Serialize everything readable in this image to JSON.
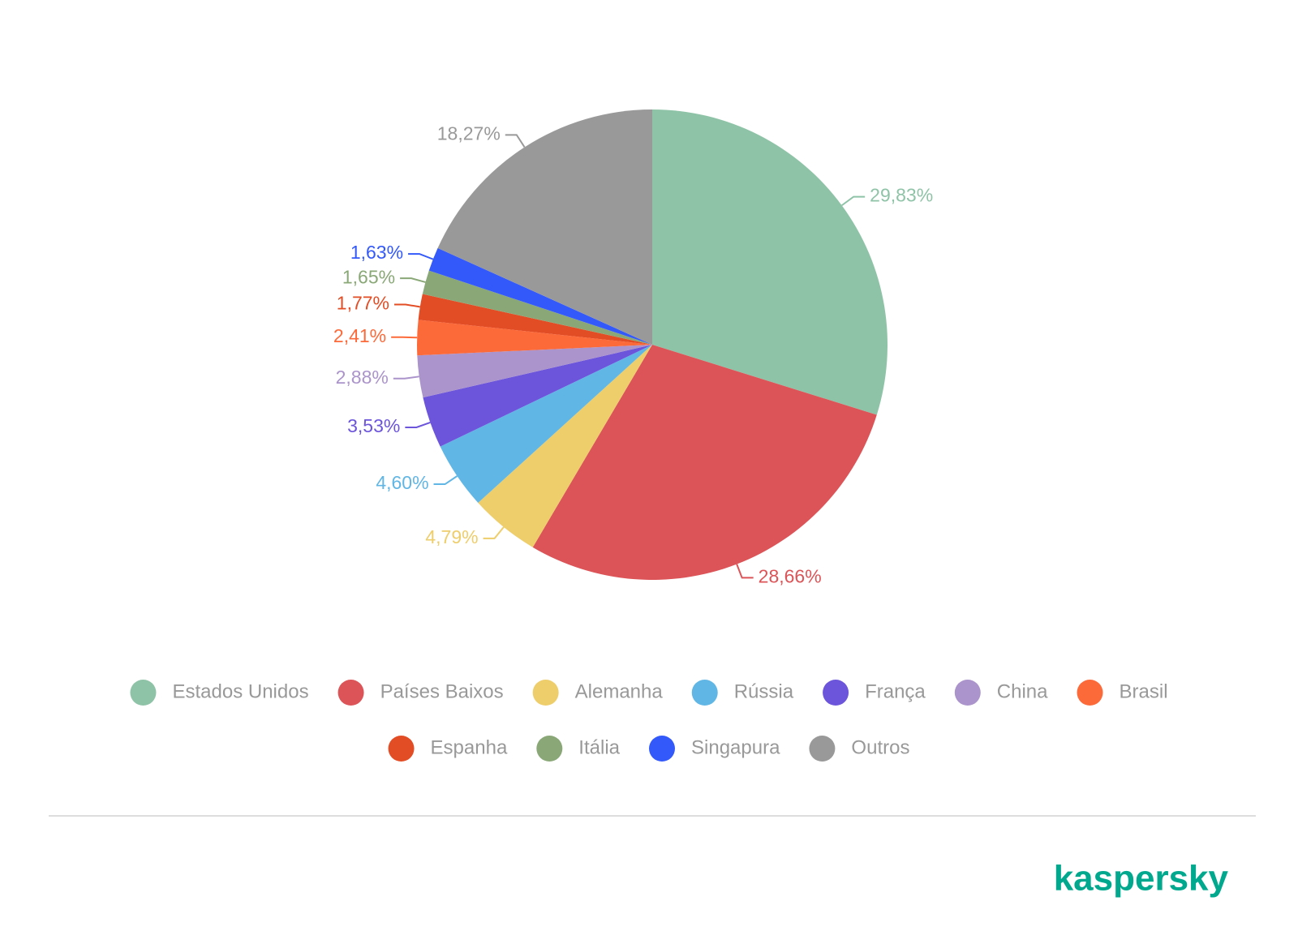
{
  "chart_data": {
    "type": "pie",
    "categories": [
      "Estados Unidos",
      "Países Baixos",
      "Alemanha",
      "Rússia",
      "França",
      "China",
      "Brasil",
      "Espanha",
      "Itália",
      "Singapura",
      "Outros"
    ],
    "values": [
      29.83,
      28.66,
      4.79,
      4.6,
      3.53,
      2.88,
      2.41,
      1.77,
      1.65,
      1.63,
      18.27
    ],
    "value_labels": [
      "29,83%",
      "28,66%",
      "4,79%",
      "4,60%",
      "3,53%",
      "2,88%",
      "2,41%",
      "1,77%",
      "1,65%",
      "1,63%",
      "18,27%"
    ],
    "colors": [
      "#8fc3a7",
      "#dc5457",
      "#eecd6b",
      "#60b6e5",
      "#6c55db",
      "#ab94cb",
      "#fd6a3a",
      "#e34d25",
      "#8aa877",
      "#3359fb",
      "#999999"
    ],
    "legend": "bottom"
  },
  "brand": "kaspersky"
}
